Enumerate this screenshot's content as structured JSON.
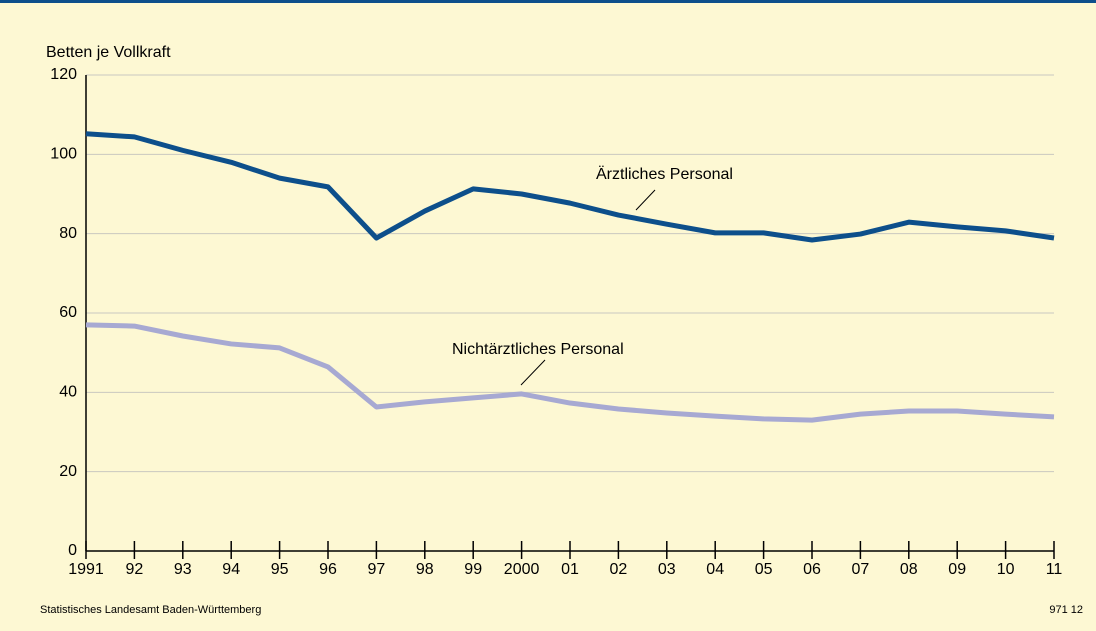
{
  "chart_data": {
    "type": "line",
    "y_label": "Betten je Vollkraft",
    "categories": [
      "1991",
      "92",
      "93",
      "94",
      "95",
      "96",
      "97",
      "98",
      "99",
      "2000",
      "01",
      "02",
      "03",
      "04",
      "05",
      "06",
      "07",
      "08",
      "09",
      "10",
      "11"
    ],
    "series": [
      {
        "name": "Ärztliches Personal",
        "color": "#0d4f8b",
        "values": [
          105.2,
          104.4,
          101,
          98,
          94,
          91.8,
          78.9,
          85.7,
          91.3,
          90,
          87.7,
          84.7,
          82.4,
          80.2,
          80.2,
          78.4,
          79.9,
          82.9,
          81.7,
          80.7,
          78.9
        ]
      },
      {
        "name": "Nichtärztliches Personal",
        "color": "#a7a9d2",
        "values": [
          57,
          56.7,
          54.2,
          52.2,
          51.2,
          46.4,
          36.3,
          37.6,
          38.6,
          39.6,
          37.3,
          35.8,
          34.8,
          34,
          33.3,
          33,
          34.5,
          35.3,
          35.3,
          34.5,
          33.8
        ]
      }
    ],
    "ylim": [
      0,
      120
    ],
    "yticks": [
      0,
      20,
      40,
      60,
      80,
      100,
      120
    ],
    "grid": true,
    "source": "Statistisches Landesamt Baden-Württemberg",
    "code": "971 12"
  }
}
